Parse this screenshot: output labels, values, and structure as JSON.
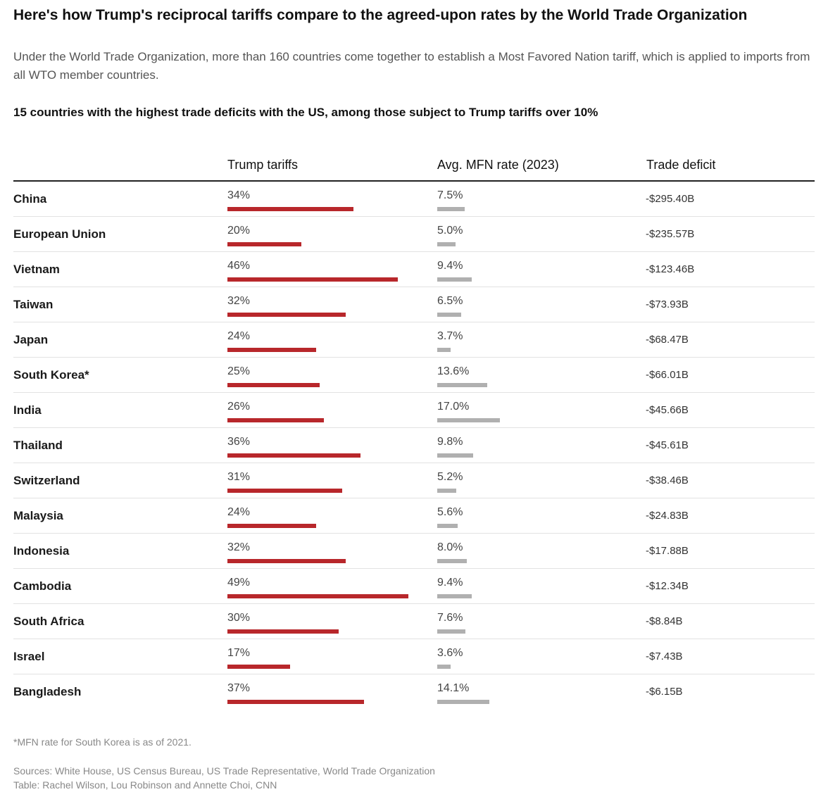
{
  "header": {
    "title": "Here's how Trump's reciprocal tariffs compare to the agreed-upon rates by the World Trade Organization",
    "subtitle": "Under the World Trade Organization, more than 160 countries come together to establish a Most Favored Nation tariff, which is applied to imports from all WTO member countries.",
    "table_heading": "15 countries with the highest trade deficits with the US, among those subject to Trump tariffs over 10%"
  },
  "colors": {
    "tariff_bar": "#b8272b",
    "mfn_bar": "#b0b0b0"
  },
  "chart_data": {
    "type": "table",
    "columns": [
      "",
      "Trump tariffs",
      "Avg. MFN rate (2023)",
      "Trade deficit"
    ],
    "rows": [
      {
        "country": "China",
        "tariff": 34,
        "tariff_label": "34%",
        "mfn": 7.5,
        "mfn_label": "7.5%",
        "deficit": "-$295.40B"
      },
      {
        "country": "European Union",
        "tariff": 20,
        "tariff_label": "20%",
        "mfn": 5.0,
        "mfn_label": "5.0%",
        "deficit": "-$235.57B"
      },
      {
        "country": "Vietnam",
        "tariff": 46,
        "tariff_label": "46%",
        "mfn": 9.4,
        "mfn_label": "9.4%",
        "deficit": "-$123.46B"
      },
      {
        "country": "Taiwan",
        "tariff": 32,
        "tariff_label": "32%",
        "mfn": 6.5,
        "mfn_label": "6.5%",
        "deficit": "-$73.93B"
      },
      {
        "country": "Japan",
        "tariff": 24,
        "tariff_label": "24%",
        "mfn": 3.7,
        "mfn_label": "3.7%",
        "deficit": "-$68.47B"
      },
      {
        "country": "South Korea*",
        "tariff": 25,
        "tariff_label": "25%",
        "mfn": 13.6,
        "mfn_label": "13.6%",
        "deficit": "-$66.01B"
      },
      {
        "country": "India",
        "tariff": 26,
        "tariff_label": "26%",
        "mfn": 17.0,
        "mfn_label": "17.0%",
        "deficit": "-$45.66B"
      },
      {
        "country": "Thailand",
        "tariff": 36,
        "tariff_label": "36%",
        "mfn": 9.8,
        "mfn_label": "9.8%",
        "deficit": "-$45.61B"
      },
      {
        "country": "Switzerland",
        "tariff": 31,
        "tariff_label": "31%",
        "mfn": 5.2,
        "mfn_label": "5.2%",
        "deficit": "-$38.46B"
      },
      {
        "country": "Malaysia",
        "tariff": 24,
        "tariff_label": "24%",
        "mfn": 5.6,
        "mfn_label": "5.6%",
        "deficit": "-$24.83B"
      },
      {
        "country": "Indonesia",
        "tariff": 32,
        "tariff_label": "32%",
        "mfn": 8.0,
        "mfn_label": "8.0%",
        "deficit": "-$17.88B"
      },
      {
        "country": "Cambodia",
        "tariff": 49,
        "tariff_label": "49%",
        "mfn": 9.4,
        "mfn_label": "9.4%",
        "deficit": "-$12.34B"
      },
      {
        "country": "South Africa",
        "tariff": 30,
        "tariff_label": "30%",
        "mfn": 7.6,
        "mfn_label": "7.6%",
        "deficit": "-$8.84B"
      },
      {
        "country": "Israel",
        "tariff": 17,
        "tariff_label": "17%",
        "mfn": 3.6,
        "mfn_label": "3.6%",
        "deficit": "-$7.43B"
      },
      {
        "country": "Bangladesh",
        "tariff": 37,
        "tariff_label": "37%",
        "mfn": 14.1,
        "mfn_label": "14.1%",
        "deficit": "-$6.15B"
      }
    ]
  },
  "footer": {
    "footnote": "*MFN rate for South Korea is as of 2021.",
    "sources": "Sources: White House, US Census Bureau, US Trade Representative, World Trade Organization",
    "credit": "Table: Rachel Wilson, Lou Robinson and Annette Choi, CNN"
  }
}
